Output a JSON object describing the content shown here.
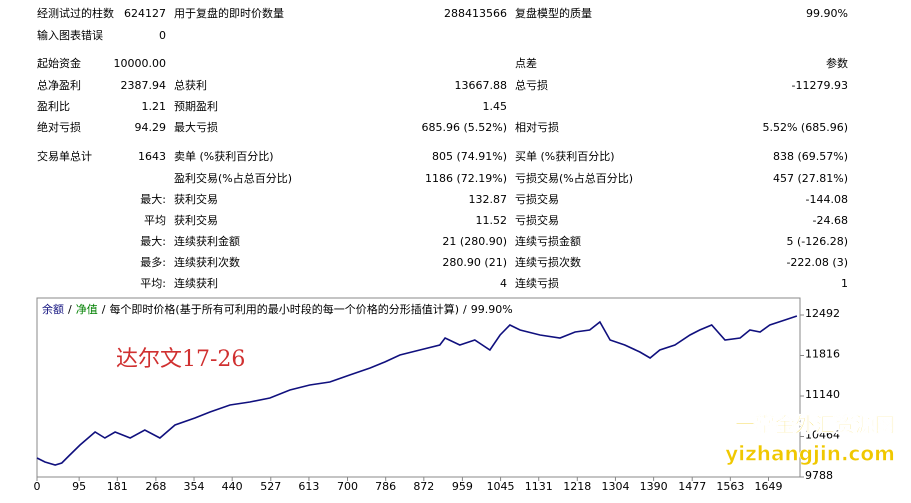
{
  "report": {
    "rows": [
      [
        "经测试过的柱数",
        "624127",
        "用于复盘的即时价数量",
        "288413566",
        "复盘模型的质量",
        "99.90%"
      ],
      [
        "输入图表错误",
        "0",
        null,
        null,
        null,
        null
      ],
      [
        "起始资金",
        "10000.00",
        null,
        null,
        "点差",
        "参数"
      ],
      [
        "总净盈利",
        "2387.94",
        "总获利",
        "13667.88",
        "总亏损",
        "-11279.93"
      ],
      [
        "盈利比",
        "1.21",
        "预期盈利",
        "1.45",
        null,
        null
      ],
      [
        "绝对亏损",
        "94.29",
        "最大亏损",
        "685.96 (5.52%)",
        "相对亏损",
        "5.52% (685.96)"
      ],
      [
        "交易单总计",
        "1643",
        "卖单 (%获利百分比)",
        "805 (74.91%)",
        "买单 (%获利百分比)",
        "838 (69.57%)"
      ],
      [
        null,
        null,
        "盈利交易(%占总百分比)",
        "1186 (72.19%)",
        "亏损交易(%占总百分比)",
        "457 (27.81%)"
      ],
      [
        "最大:",
        null,
        "获利交易",
        "132.87",
        "亏损交易",
        "-144.08"
      ],
      [
        "平均",
        null,
        "获利交易",
        "11.52",
        "亏损交易",
        "-24.68"
      ],
      [
        "最大:",
        null,
        "连续获利金额",
        "21 (280.90)",
        "连续亏损金额",
        "5 (-126.28)"
      ],
      [
        "最多:",
        null,
        "连续获利次数",
        "280.90 (21)",
        "连续亏损次数",
        "-222.08 (3)"
      ],
      [
        "平均:",
        null,
        "连续获利",
        "4",
        "连续亏损",
        "1"
      ]
    ]
  },
  "chart_data": {
    "type": "line",
    "separator": "/",
    "equity_label": "净值",
    "equity_color": "#008000",
    "model_label": "每个即时价格(基于所有可利用的最小时段的每一个价格的分形插值计算)",
    "quality": "99.90%",
    "annotation": "达尔文17-26",
    "x": [
      0,
      18,
      41,
      56,
      74,
      97,
      131,
      153,
      176,
      210,
      243,
      277,
      311,
      356,
      390,
      435,
      480,
      525,
      570,
      615,
      660,
      705,
      751,
      784,
      818,
      863,
      908,
      920,
      953,
      987,
      1021,
      1044,
      1066,
      1089,
      1134,
      1179,
      1213,
      1246,
      1269,
      1292,
      1325,
      1359,
      1382,
      1404,
      1438,
      1472,
      1494,
      1521,
      1551,
      1585,
      1607,
      1630,
      1652,
      1686,
      1713
    ],
    "series": [
      {
        "name": "余额",
        "color": "#10107e",
        "values": [
          10105,
          10038,
          9988,
          10022,
          10155,
          10322,
          10539,
          10439,
          10539,
          10439,
          10572,
          10439,
          10656,
          10773,
          10873,
          10990,
          11040,
          11107,
          11240,
          11324,
          11374,
          11490,
          11607,
          11707,
          11824,
          11908,
          11991,
          12108,
          11991,
          12075,
          11908,
          12158,
          12325,
          12241,
          12158,
          12108,
          12208,
          12241,
          12375,
          12075,
          11991,
          11874,
          11774,
          11908,
          11991,
          12158,
          12241,
          12325,
          12075,
          12108,
          12241,
          12208,
          12325,
          12408,
          12475
        ]
      }
    ],
    "xlim": [
      0,
      1720
    ],
    "xticks": [
      0,
      95,
      181,
      268,
      354,
      440,
      527,
      613,
      700,
      786,
      872,
      959,
      1045,
      1131,
      1218,
      1304,
      1390,
      1477,
      1563,
      1649
    ],
    "ylim": [
      9788,
      12776
    ],
    "yticks": [
      9788,
      10464,
      11140,
      11816,
      12492
    ]
  },
  "watermark": {
    "title": "一掌金外汇资源网",
    "url": "yizhangjin.com"
  }
}
